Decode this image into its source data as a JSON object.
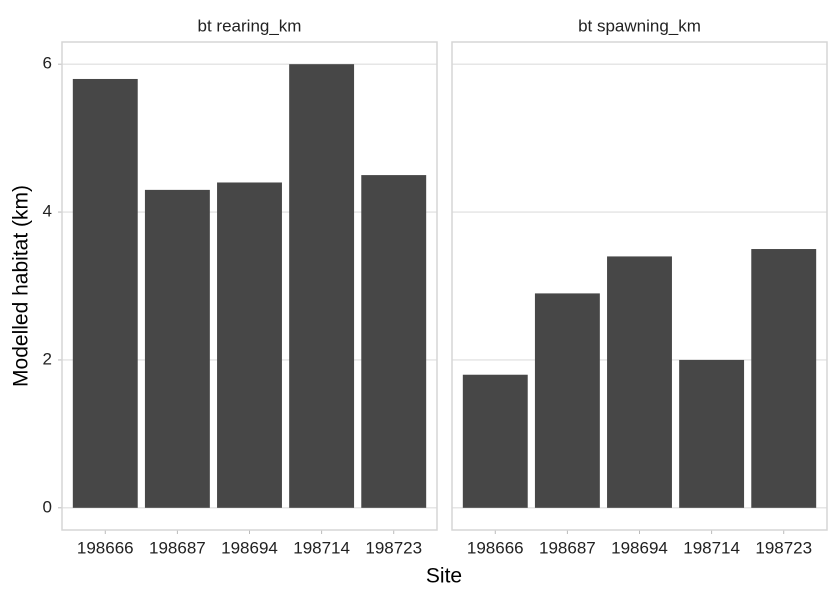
{
  "chart_data": {
    "type": "bar",
    "xlabel": "Site",
    "ylabel": "Modelled habitat (km)",
    "color": "#474747",
    "grid": true,
    "ylim": [
      -0.3,
      6.3
    ],
    "yticks": [
      0,
      2,
      4,
      6
    ],
    "facets": [
      {
        "title": "bt rearing_km",
        "categories": [
          "198666",
          "198687",
          "198694",
          "198714",
          "198723"
        ],
        "values": [
          5.8,
          4.3,
          4.4,
          6.0,
          4.5
        ]
      },
      {
        "title": "bt spawning_km",
        "categories": [
          "198666",
          "198687",
          "198694",
          "198714",
          "198723"
        ],
        "values": [
          1.8,
          2.9,
          3.4,
          2.0,
          3.5
        ]
      }
    ]
  }
}
